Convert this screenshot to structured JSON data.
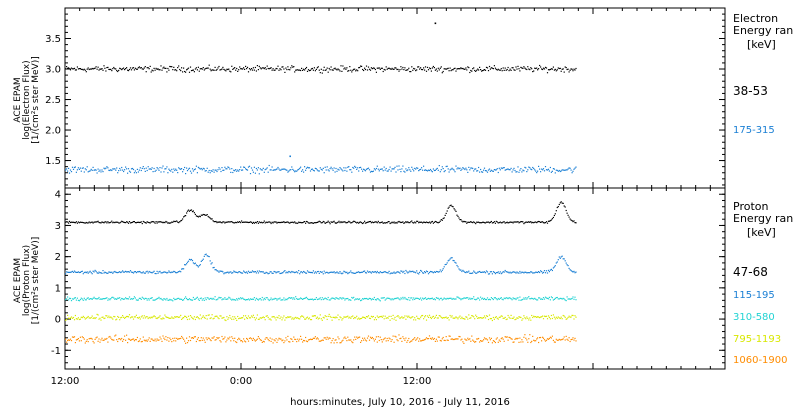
{
  "chart_data": [
    {
      "type": "scatter",
      "ylabel_lines": [
        "ACE EPAM",
        "log(Electron Flux)",
        "[1/(cm²s ster MeV)]"
      ],
      "ylim": [
        1.05,
        4.0
      ],
      "yticks": [
        1.5,
        2.0,
        2.5,
        3.0,
        3.5
      ],
      "ytick_labels": [
        "1.5",
        "2.0",
        "2.5",
        "3.0",
        "3.5"
      ],
      "legend_title_lines": [
        "Electron",
        "Energy ran"
      ],
      "legend_unit": "[keV]",
      "series": [
        {
          "name": "38-53",
          "color": "#000000",
          "mean": 3.0,
          "spread": 0.07,
          "outliers": [
            {
              "x": 25.2,
              "y": 3.75
            }
          ]
        },
        {
          "name": "175-315",
          "color": "#1a7fd4",
          "mean": 1.35,
          "spread": 0.08,
          "outliers": [
            {
              "x": 15.3,
              "y": 1.57
            }
          ]
        }
      ]
    },
    {
      "type": "scatter",
      "ylabel_lines": [
        "ACE EPAM",
        "log(Proton Flux)",
        "[1/(cm²s ster MeV)]"
      ],
      "ylim": [
        -1.6,
        4.2
      ],
      "yticks": [
        -1,
        0,
        1,
        2,
        3,
        4
      ],
      "ytick_labels": [
        "-1",
        "0",
        "1",
        "2",
        "3",
        "4"
      ],
      "legend_title_lines": [
        "Proton",
        "Energy ran"
      ],
      "legend_unit": "[keV]",
      "series": [
        {
          "name": "47-68",
          "color": "#000000",
          "mean": 3.1,
          "spread": 0.05,
          "bumps": [
            {
              "x": 8.5,
              "h": 0.4
            },
            {
              "x": 9.5,
              "h": 0.25
            },
            {
              "x": 26.3,
              "h": 0.55
            },
            {
              "x": 33.8,
              "h": 0.65
            }
          ]
        },
        {
          "name": "115-195",
          "color": "#1a7fd4",
          "mean": 1.5,
          "spread": 0.07,
          "bumps": [
            {
              "x": 8.5,
              "h": 0.4
            },
            {
              "x": 9.6,
              "h": 0.55
            },
            {
              "x": 26.3,
              "h": 0.45
            },
            {
              "x": 33.8,
              "h": 0.5
            }
          ]
        },
        {
          "name": "310-580",
          "color": "#22d3d3",
          "mean": 0.65,
          "spread": 0.08,
          "bumps": []
        },
        {
          "name": "795-1193",
          "color": "#d8e800",
          "mean": 0.05,
          "spread": 0.12,
          "bumps": []
        },
        {
          "name": "1060-1900",
          "color": "#ff8c00",
          "mean": -0.65,
          "spread": 0.17,
          "bumps": []
        }
      ]
    }
  ],
  "x_axis": {
    "range_hours": [
      0,
      45
    ],
    "data_span_hours": [
      0,
      34.8
    ],
    "ticks": [
      {
        "x": 0,
        "label": "12:00"
      },
      {
        "x": 12,
        "label": "0:00"
      },
      {
        "x": 24,
        "label": "12:00"
      },
      {
        "x": 36,
        "label": ""
      }
    ],
    "minor_step_hours": 1,
    "xlabel": "hours:minutes, July 10, 2016 - July 11, 2016"
  }
}
